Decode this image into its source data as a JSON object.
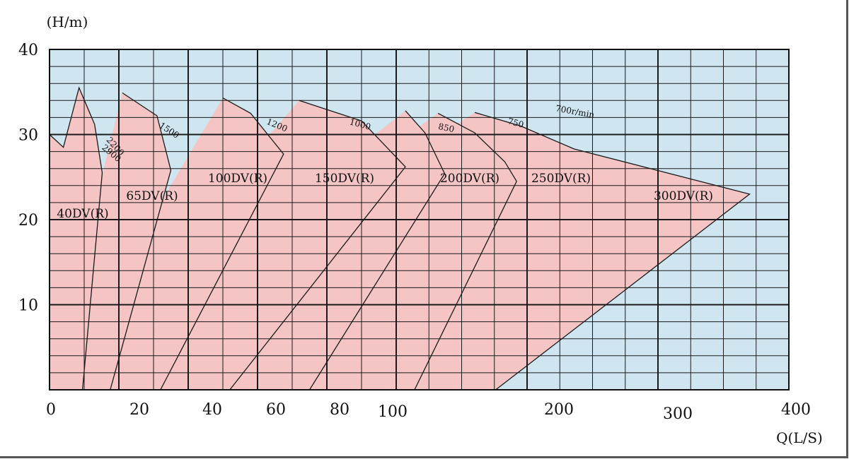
{
  "chart_data": {
    "type": "area",
    "title": "",
    "ylabel": "(H/m)",
    "xlabel": "Q(L/S)",
    "ylim": [
      0,
      40
    ],
    "y_ticks": [
      "40",
      "30",
      "20",
      "10"
    ],
    "x_ticks": [
      {
        "value": 0,
        "label": "0"
      },
      {
        "value": 20,
        "label": "20"
      },
      {
        "value": 40,
        "label": "40"
      },
      {
        "value": 60,
        "label": "60"
      },
      {
        "value": 80,
        "label": "80"
      },
      {
        "value": 100,
        "label": "100"
      },
      {
        "value": 200,
        "label": "200"
      },
      {
        "value": 300,
        "label": "300"
      },
      {
        "value": 400,
        "label": "400"
      }
    ],
    "grid": true,
    "colors": {
      "background": "#cfe6f0",
      "region_fill": "#f5c4c4",
      "grid_line": "#1a1a1a",
      "outline": "#1a1a1a"
    },
    "models": [
      {
        "name": "40DV(R)",
        "points": [
          [
            0,
            30
          ],
          [
            4,
            28.5
          ],
          [
            8.5,
            35.5
          ],
          [
            13,
            31.2
          ],
          [
            15.2,
            25.5
          ],
          [
            9.5,
            0
          ]
        ]
      },
      {
        "name": "65DV(R)",
        "points": [
          [
            21,
            34.9
          ],
          [
            31,
            32.2
          ],
          [
            35,
            25.8
          ],
          [
            17.5,
            0
          ]
        ]
      },
      {
        "name": "100DV(R)",
        "points": [
          [
            50,
            34.3
          ],
          [
            58,
            32.5
          ],
          [
            67.5,
            27.7
          ],
          [
            32,
            0
          ]
        ]
      },
      {
        "name": "150DV(R)",
        "points": [
          [
            72,
            34
          ],
          [
            90,
            31.6
          ],
          [
            107,
            26.2
          ],
          [
            52,
            0
          ]
        ]
      },
      {
        "name": "200DV(R)",
        "points": [
          [
            107,
            32.8
          ],
          [
            122,
            30.2
          ],
          [
            137,
            25.4
          ],
          [
            75,
            0
          ]
        ]
      },
      {
        "name": "250DV(R)",
        "points": [
          [
            132,
            32.5
          ],
          [
            160,
            30.2
          ],
          [
            183,
            26.8
          ],
          [
            192,
            24.5
          ],
          [
            114,
            0
          ]
        ]
      },
      {
        "name": "300DV(R)",
        "points": [
          [
            160,
            32.6
          ],
          [
            195,
            31
          ],
          [
            236,
            28.3
          ],
          [
            370,
            23
          ],
          [
            176,
            0
          ]
        ]
      }
    ],
    "speed_labels": [
      "2900",
      "2200",
      "1500",
      "1200",
      "1000",
      "850",
      "750",
      "700r/min"
    ]
  }
}
